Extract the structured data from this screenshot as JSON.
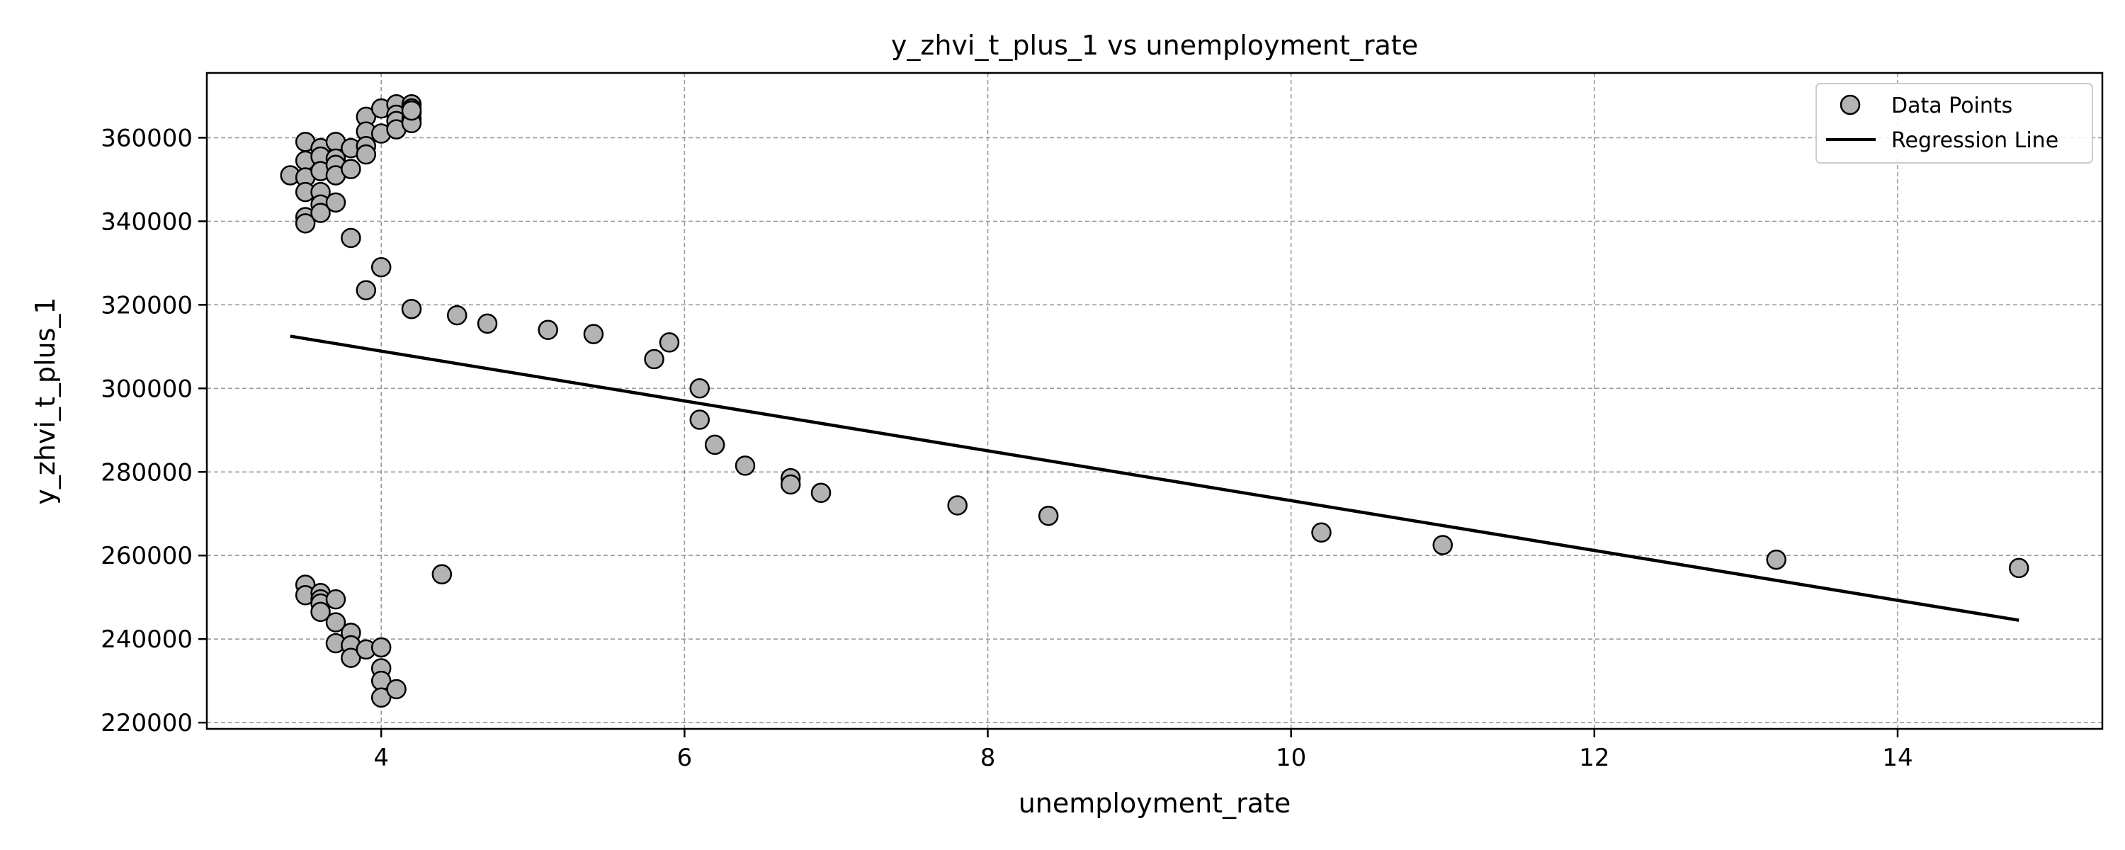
{
  "chart_data": {
    "type": "scatter",
    "title": "y_zhvi_t_plus_1 vs unemployment_rate",
    "xlabel": "unemployment_rate",
    "ylabel": "y_zhvi_t_plus_1",
    "xlim": [
      2.85,
      15.35
    ],
    "ylim": [
      218500,
      375500
    ],
    "xticks": [
      4,
      6,
      8,
      10,
      12,
      14
    ],
    "yticks": [
      220000,
      240000,
      260000,
      280000,
      300000,
      320000,
      340000,
      360000
    ],
    "grid": true,
    "legend_position": "top-right",
    "series": [
      {
        "name": "Data Points",
        "kind": "scatter",
        "color": "#b3b3b3",
        "edgecolor": "#000000",
        "points": [
          [
            3.4,
            351000
          ],
          [
            3.5,
            359000
          ],
          [
            3.5,
            354500
          ],
          [
            3.5,
            350500
          ],
          [
            3.5,
            347000
          ],
          [
            3.5,
            341000
          ],
          [
            3.5,
            339500
          ],
          [
            3.6,
            357500
          ],
          [
            3.6,
            355500
          ],
          [
            3.6,
            352000
          ],
          [
            3.6,
            347000
          ],
          [
            3.6,
            344000
          ],
          [
            3.6,
            342000
          ],
          [
            3.7,
            359000
          ],
          [
            3.7,
            355000
          ],
          [
            3.7,
            353500
          ],
          [
            3.7,
            351000
          ],
          [
            3.7,
            344500
          ],
          [
            3.8,
            357500
          ],
          [
            3.8,
            352500
          ],
          [
            3.8,
            336000
          ],
          [
            3.9,
            365000
          ],
          [
            3.9,
            361500
          ],
          [
            3.9,
            358000
          ],
          [
            3.9,
            356000
          ],
          [
            3.9,
            323500
          ],
          [
            4.0,
            367000
          ],
          [
            4.0,
            361000
          ],
          [
            4.0,
            329000
          ],
          [
            4.1,
            368000
          ],
          [
            4.1,
            365500
          ],
          [
            4.1,
            364000
          ],
          [
            4.1,
            362000
          ],
          [
            4.2,
            368000
          ],
          [
            4.2,
            367000
          ],
          [
            4.2,
            366000
          ],
          [
            4.2,
            364500
          ],
          [
            4.2,
            363500
          ],
          [
            4.2,
            366500
          ],
          [
            4.2,
            319000
          ],
          [
            4.5,
            317500
          ],
          [
            4.7,
            315500
          ],
          [
            5.1,
            314000
          ],
          [
            5.4,
            313000
          ],
          [
            5.8,
            307000
          ],
          [
            5.9,
            311000
          ],
          [
            6.1,
            300000
          ],
          [
            6.1,
            292500
          ],
          [
            6.2,
            286500
          ],
          [
            6.4,
            281500
          ],
          [
            6.7,
            278500
          ],
          [
            6.7,
            277000
          ],
          [
            6.9,
            275000
          ],
          [
            7.8,
            272000
          ],
          [
            8.4,
            269500
          ],
          [
            10.2,
            265500
          ],
          [
            11.0,
            262500
          ],
          [
            13.2,
            259000
          ],
          [
            14.8,
            257000
          ],
          [
            4.4,
            255500
          ],
          [
            3.5,
            253000
          ],
          [
            3.5,
            250500
          ],
          [
            3.6,
            251000
          ],
          [
            3.6,
            249500
          ],
          [
            3.6,
            248500
          ],
          [
            3.6,
            246500
          ],
          [
            3.7,
            249500
          ],
          [
            3.7,
            244000
          ],
          [
            3.7,
            239000
          ],
          [
            3.8,
            241500
          ],
          [
            3.8,
            238500
          ],
          [
            3.8,
            235500
          ],
          [
            3.9,
            237500
          ],
          [
            4.0,
            238000
          ],
          [
            4.0,
            233000
          ],
          [
            4.0,
            230000
          ],
          [
            4.0,
            226000
          ],
          [
            4.1,
            228000
          ]
        ]
      },
      {
        "name": "Regression Line",
        "kind": "line",
        "color": "#000000",
        "points": [
          [
            3.4,
            312500
          ],
          [
            14.8,
            244500
          ]
        ]
      }
    ]
  }
}
